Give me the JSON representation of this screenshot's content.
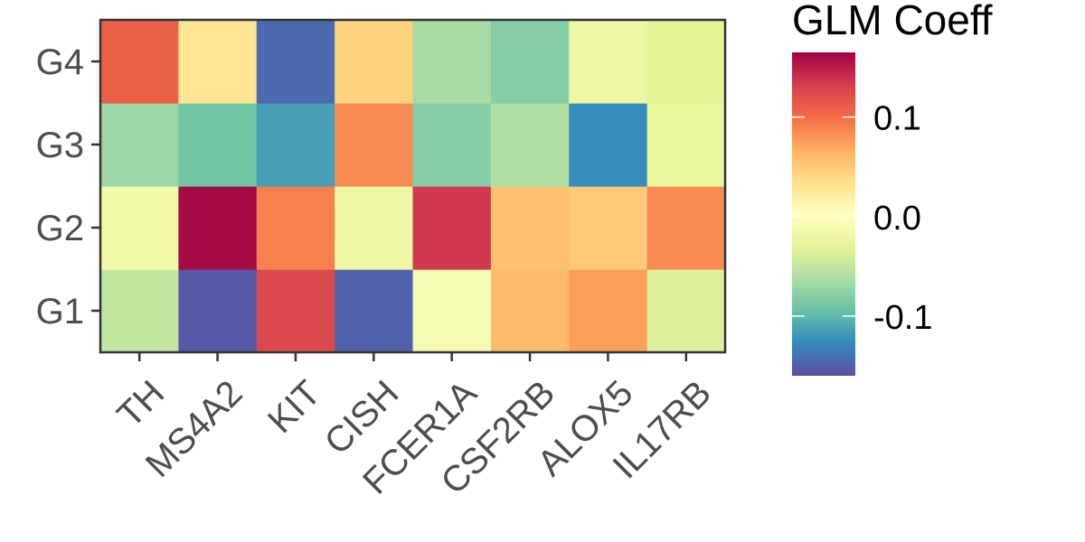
{
  "chart_data": {
    "type": "heatmap",
    "x_categories": [
      "TH",
      "MS4A2",
      "KIT",
      "CISH",
      "FCER1A",
      "CSF2RB",
      "ALOX5",
      "IL17RB"
    ],
    "y_categories": [
      "G1",
      "G2",
      "G3",
      "G4"
    ],
    "values": [
      [
        -0.05,
        -0.155,
        0.125,
        -0.15,
        -0.01,
        0.06,
        0.075,
        -0.035
      ],
      [
        -0.015,
        0.16,
        0.09,
        -0.02,
        0.135,
        0.055,
        0.05,
        0.085
      ],
      [
        -0.07,
        -0.09,
        -0.115,
        0.085,
        -0.08,
        -0.06,
        -0.125,
        -0.025
      ],
      [
        0.11,
        0.03,
        -0.145,
        0.045,
        -0.065,
        -0.08,
        -0.02,
        -0.03
      ]
    ],
    "legend": {
      "title": "GLM Coeff",
      "ticks": [
        0.1,
        0.0,
        -0.1
      ],
      "tick_labels": [
        "0.1",
        "0.0",
        "-0.1"
      ],
      "range": [
        -0.16,
        0.165
      ],
      "placement": "right"
    },
    "colors": [
      "#5e4fa2",
      "#3288bd",
      "#66c2a5",
      "#abdda4",
      "#e6f598",
      "#ffffbf",
      "#fee08b",
      "#fdae61",
      "#f46d43",
      "#d53e4f",
      "#9e0142"
    ],
    "grid": false
  }
}
